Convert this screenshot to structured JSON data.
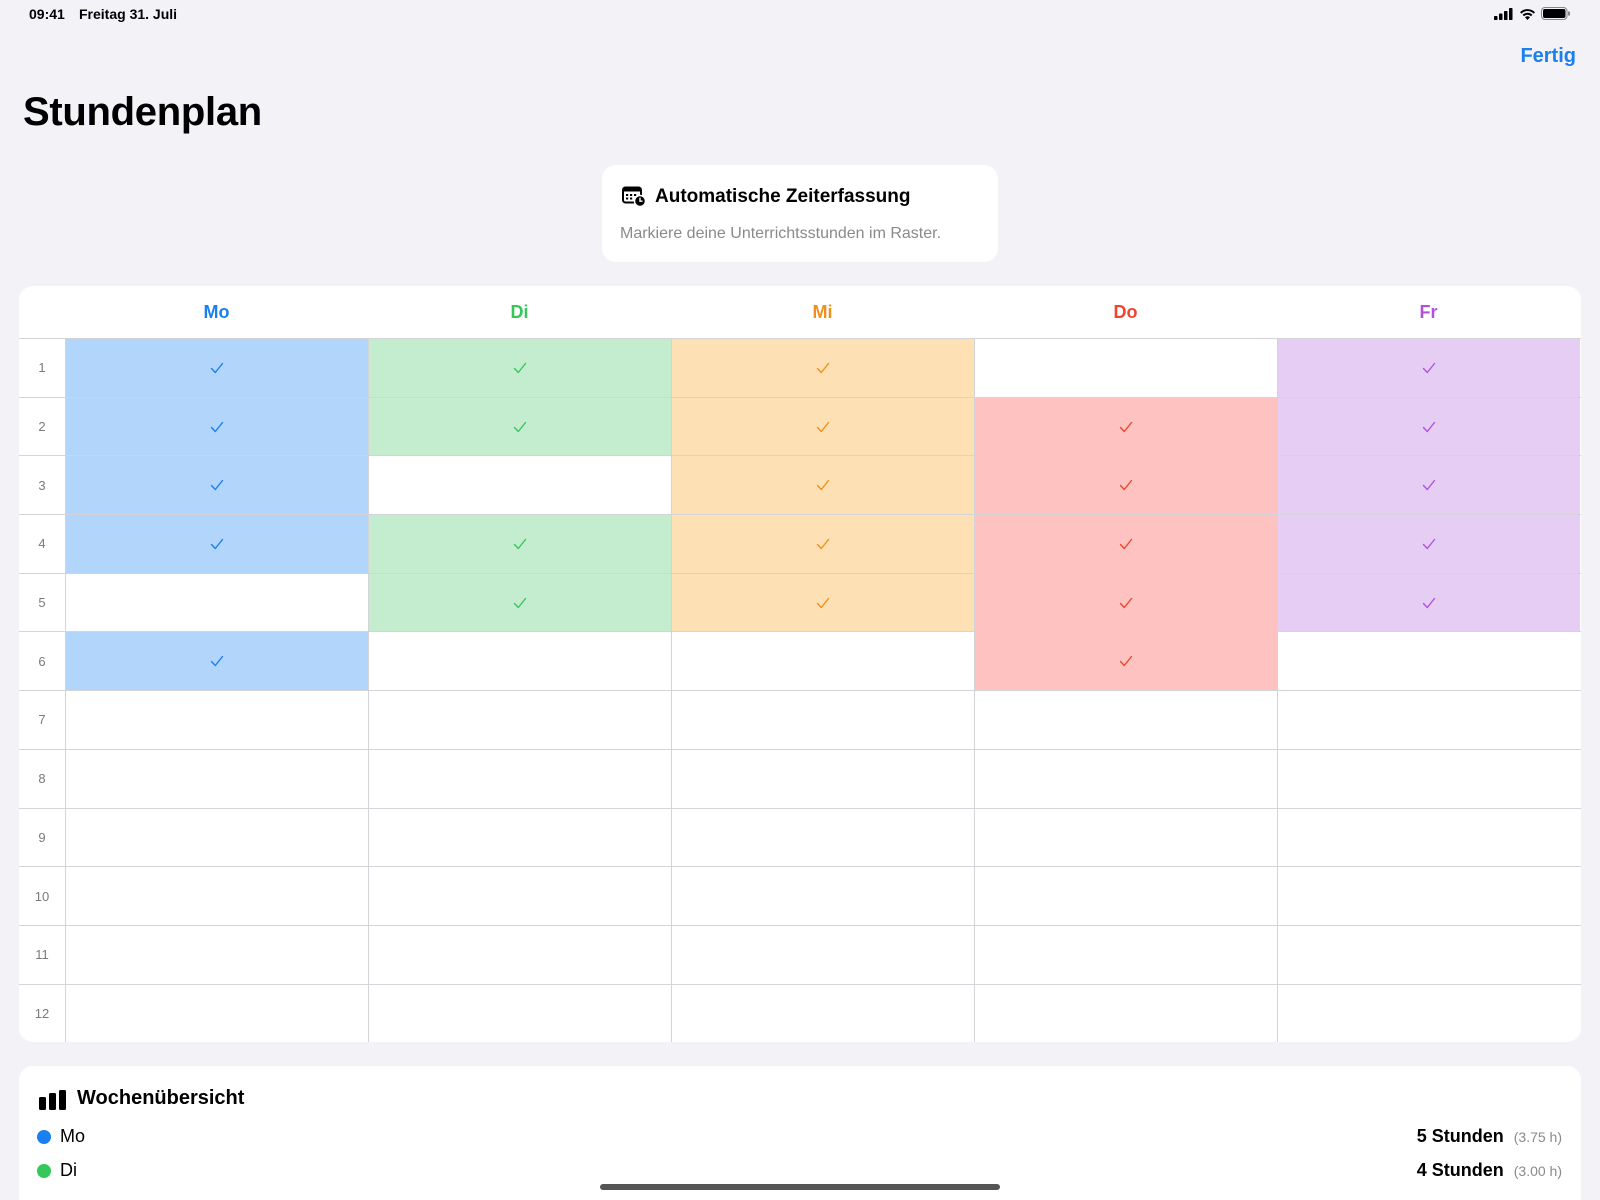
{
  "status": {
    "time": "09:41",
    "date": "Freitag 31. Juli"
  },
  "nav": {
    "done_label": "Fertig"
  },
  "page": {
    "title": "Stundenplan"
  },
  "info": {
    "title": "Automatische Zeiterfassung",
    "subtitle": "Markiere deine Unterrichtsstunden im Raster.",
    "icon": "calendar-clock-icon"
  },
  "days": [
    {
      "label": "Mo",
      "color": "#1a7ff0",
      "fill": "#b2d5fb",
      "slots": [
        1,
        2,
        3,
        4,
        6
      ]
    },
    {
      "label": "Di",
      "color": "#34c759",
      "fill": "#c4edd0",
      "slots": [
        1,
        2,
        4,
        5
      ]
    },
    {
      "label": "Mi",
      "color": "#f0901a",
      "fill": "#fde0b4",
      "slots": [
        1,
        2,
        3,
        4,
        5
      ]
    },
    {
      "label": "Do",
      "color": "#f0442e",
      "fill": "#fec3c1",
      "slots": [
        2,
        3,
        4,
        5,
        6
      ]
    },
    {
      "label": "Fr",
      "color": "#af52de",
      "fill": "#e6cdf3",
      "slots": [
        1,
        2,
        3,
        4,
        5
      ]
    }
  ],
  "periods": [
    "1",
    "2",
    "3",
    "4",
    "5",
    "6",
    "7",
    "8",
    "9",
    "10",
    "11",
    "12"
  ],
  "summary": {
    "title": "Wochenübersicht",
    "icon": "bar-chart-icon",
    "rows": [
      {
        "day": "Mo",
        "color": "#1a7ff0",
        "hours": "5 Stunden",
        "decimal": "(3.75 h)"
      },
      {
        "day": "Di",
        "color": "#34c759",
        "hours": "4 Stunden",
        "decimal": "(3.00 h)"
      }
    ]
  }
}
